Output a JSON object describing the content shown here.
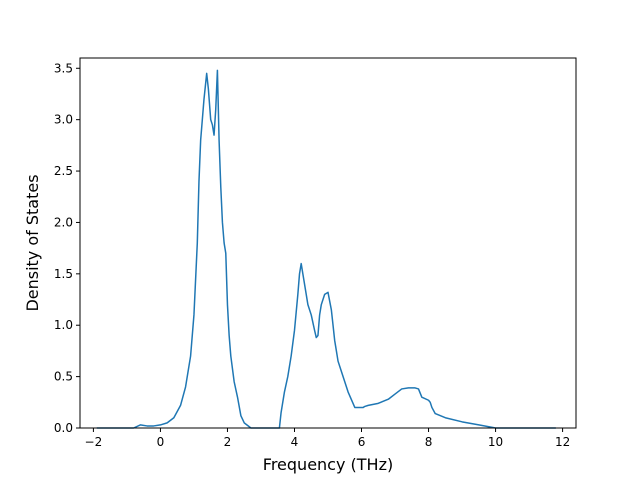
{
  "chart_data": {
    "type": "line",
    "title": "",
    "xlabel": "Frequency (THz)",
    "ylabel": "Density of States",
    "xlim": [
      -2.4,
      12.4
    ],
    "ylim": [
      0,
      3.6
    ],
    "xticks": [
      -2,
      0,
      2,
      4,
      6,
      8,
      10,
      12
    ],
    "xtick_labels": [
      "−2",
      "0",
      "2",
      "4",
      "6",
      "8",
      "10",
      "12"
    ],
    "yticks": [
      0,
      0.5,
      1,
      1.5,
      2,
      2.5,
      3,
      3.5
    ],
    "ytick_labels": [
      "0.0",
      "0.5",
      "1.0",
      "1.5",
      "2.0",
      "2.5",
      "3.0",
      "3.5"
    ],
    "grid": false,
    "legend": "none",
    "series": [
      {
        "color": "#1f77b4",
        "x": [
          -1.9,
          -0.8,
          -0.6,
          -0.4,
          -0.2,
          0.0,
          0.2,
          0.4,
          0.6,
          0.75,
          0.9,
          1.0,
          1.1,
          1.15,
          1.2,
          1.3,
          1.38,
          1.43,
          1.5,
          1.55,
          1.6,
          1.65,
          1.7,
          1.75,
          1.8,
          1.85,
          1.9,
          1.95,
          2.0,
          2.05,
          2.1,
          2.2,
          2.3,
          2.4,
          2.5,
          2.7,
          3.0,
          3.55,
          3.6,
          3.7,
          3.8,
          3.9,
          4.0,
          4.1,
          4.15,
          4.2,
          4.25,
          4.3,
          4.35,
          4.4,
          4.5,
          4.6,
          4.65,
          4.7,
          4.75,
          4.8,
          4.85,
          4.9,
          5.0,
          5.1,
          5.15,
          5.2,
          5.25,
          5.3,
          5.4,
          5.5,
          5.6,
          5.8,
          6.0,
          6.05,
          6.1,
          6.2,
          6.5,
          6.8,
          7.0,
          7.2,
          7.4,
          7.6,
          7.7,
          7.8,
          8.0,
          8.05,
          8.1,
          8.2,
          8.5,
          9.0,
          9.5,
          10.0,
          10.3,
          10.5,
          10.6,
          10.8,
          11.2,
          11.8
        ],
        "y": [
          0.0,
          0.0,
          0.03,
          0.02,
          0.02,
          0.03,
          0.05,
          0.1,
          0.22,
          0.4,
          0.7,
          1.1,
          1.8,
          2.4,
          2.8,
          3.2,
          3.45,
          3.3,
          3.0,
          2.95,
          2.85,
          3.1,
          3.48,
          2.8,
          2.35,
          2.0,
          1.8,
          1.7,
          1.2,
          0.9,
          0.7,
          0.45,
          0.3,
          0.12,
          0.05,
          0.0,
          0.0,
          0.0,
          0.15,
          0.35,
          0.5,
          0.7,
          0.95,
          1.3,
          1.5,
          1.6,
          1.5,
          1.4,
          1.3,
          1.2,
          1.1,
          0.95,
          0.88,
          0.9,
          1.1,
          1.2,
          1.25,
          1.3,
          1.32,
          1.15,
          1.0,
          0.85,
          0.75,
          0.65,
          0.55,
          0.45,
          0.35,
          0.2,
          0.2,
          0.2,
          0.21,
          0.22,
          0.24,
          0.28,
          0.33,
          0.38,
          0.39,
          0.39,
          0.38,
          0.3,
          0.27,
          0.25,
          0.2,
          0.14,
          0.1,
          0.06,
          0.03,
          0.0,
          0.0,
          0.0,
          0.0,
          0.0,
          0.0,
          0.0
        ]
      }
    ]
  }
}
